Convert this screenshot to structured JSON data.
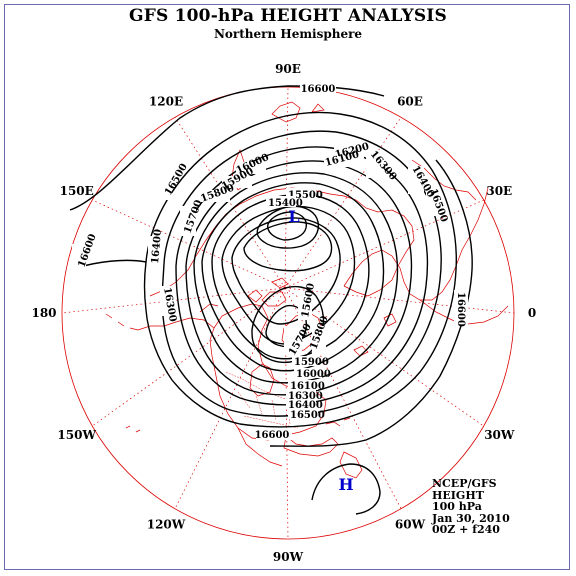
{
  "title": "GFS 100-hPa HEIGHT ANALYSIS",
  "subtitle": "Northern Hemisphere",
  "longitudes": [
    {
      "label": "0",
      "lon": 0
    },
    {
      "label": "30E",
      "lon": 30
    },
    {
      "label": "60E",
      "lon": 60
    },
    {
      "label": "90E",
      "lon": 90
    },
    {
      "label": "120E",
      "lon": 120
    },
    {
      "label": "150E",
      "lon": 150
    },
    {
      "label": "180",
      "lon": 180
    },
    {
      "label": "150W",
      "lon": -150
    },
    {
      "label": "120W",
      "lon": -120
    },
    {
      "label": "90W",
      "lon": -90
    },
    {
      "label": "60W",
      "lon": -60
    },
    {
      "label": "30W",
      "lon": -30
    }
  ],
  "contour_interval": 100,
  "contour_labels": [
    "16600",
    "16500",
    "16400",
    "16300",
    "16200",
    "16100",
    "16000",
    "15900",
    "15800",
    "15700",
    "15600",
    "15500",
    "15400"
  ],
  "pressure_centers": [
    {
      "symbol": "L",
      "meaning": "low"
    },
    {
      "symbol": "H",
      "meaning": "high"
    }
  ],
  "info": {
    "source": "NCEP/GFS",
    "field": "HEIGHT",
    "level": "100 hPa",
    "date": "Jan 30, 2010",
    "valid": "00Z + f240"
  },
  "colors": {
    "contours": "#000000",
    "coastlines": "#dd0000",
    "gridlines": "#dd0000",
    "centers": "#0000cc",
    "frame": "#6a6ab0"
  }
}
